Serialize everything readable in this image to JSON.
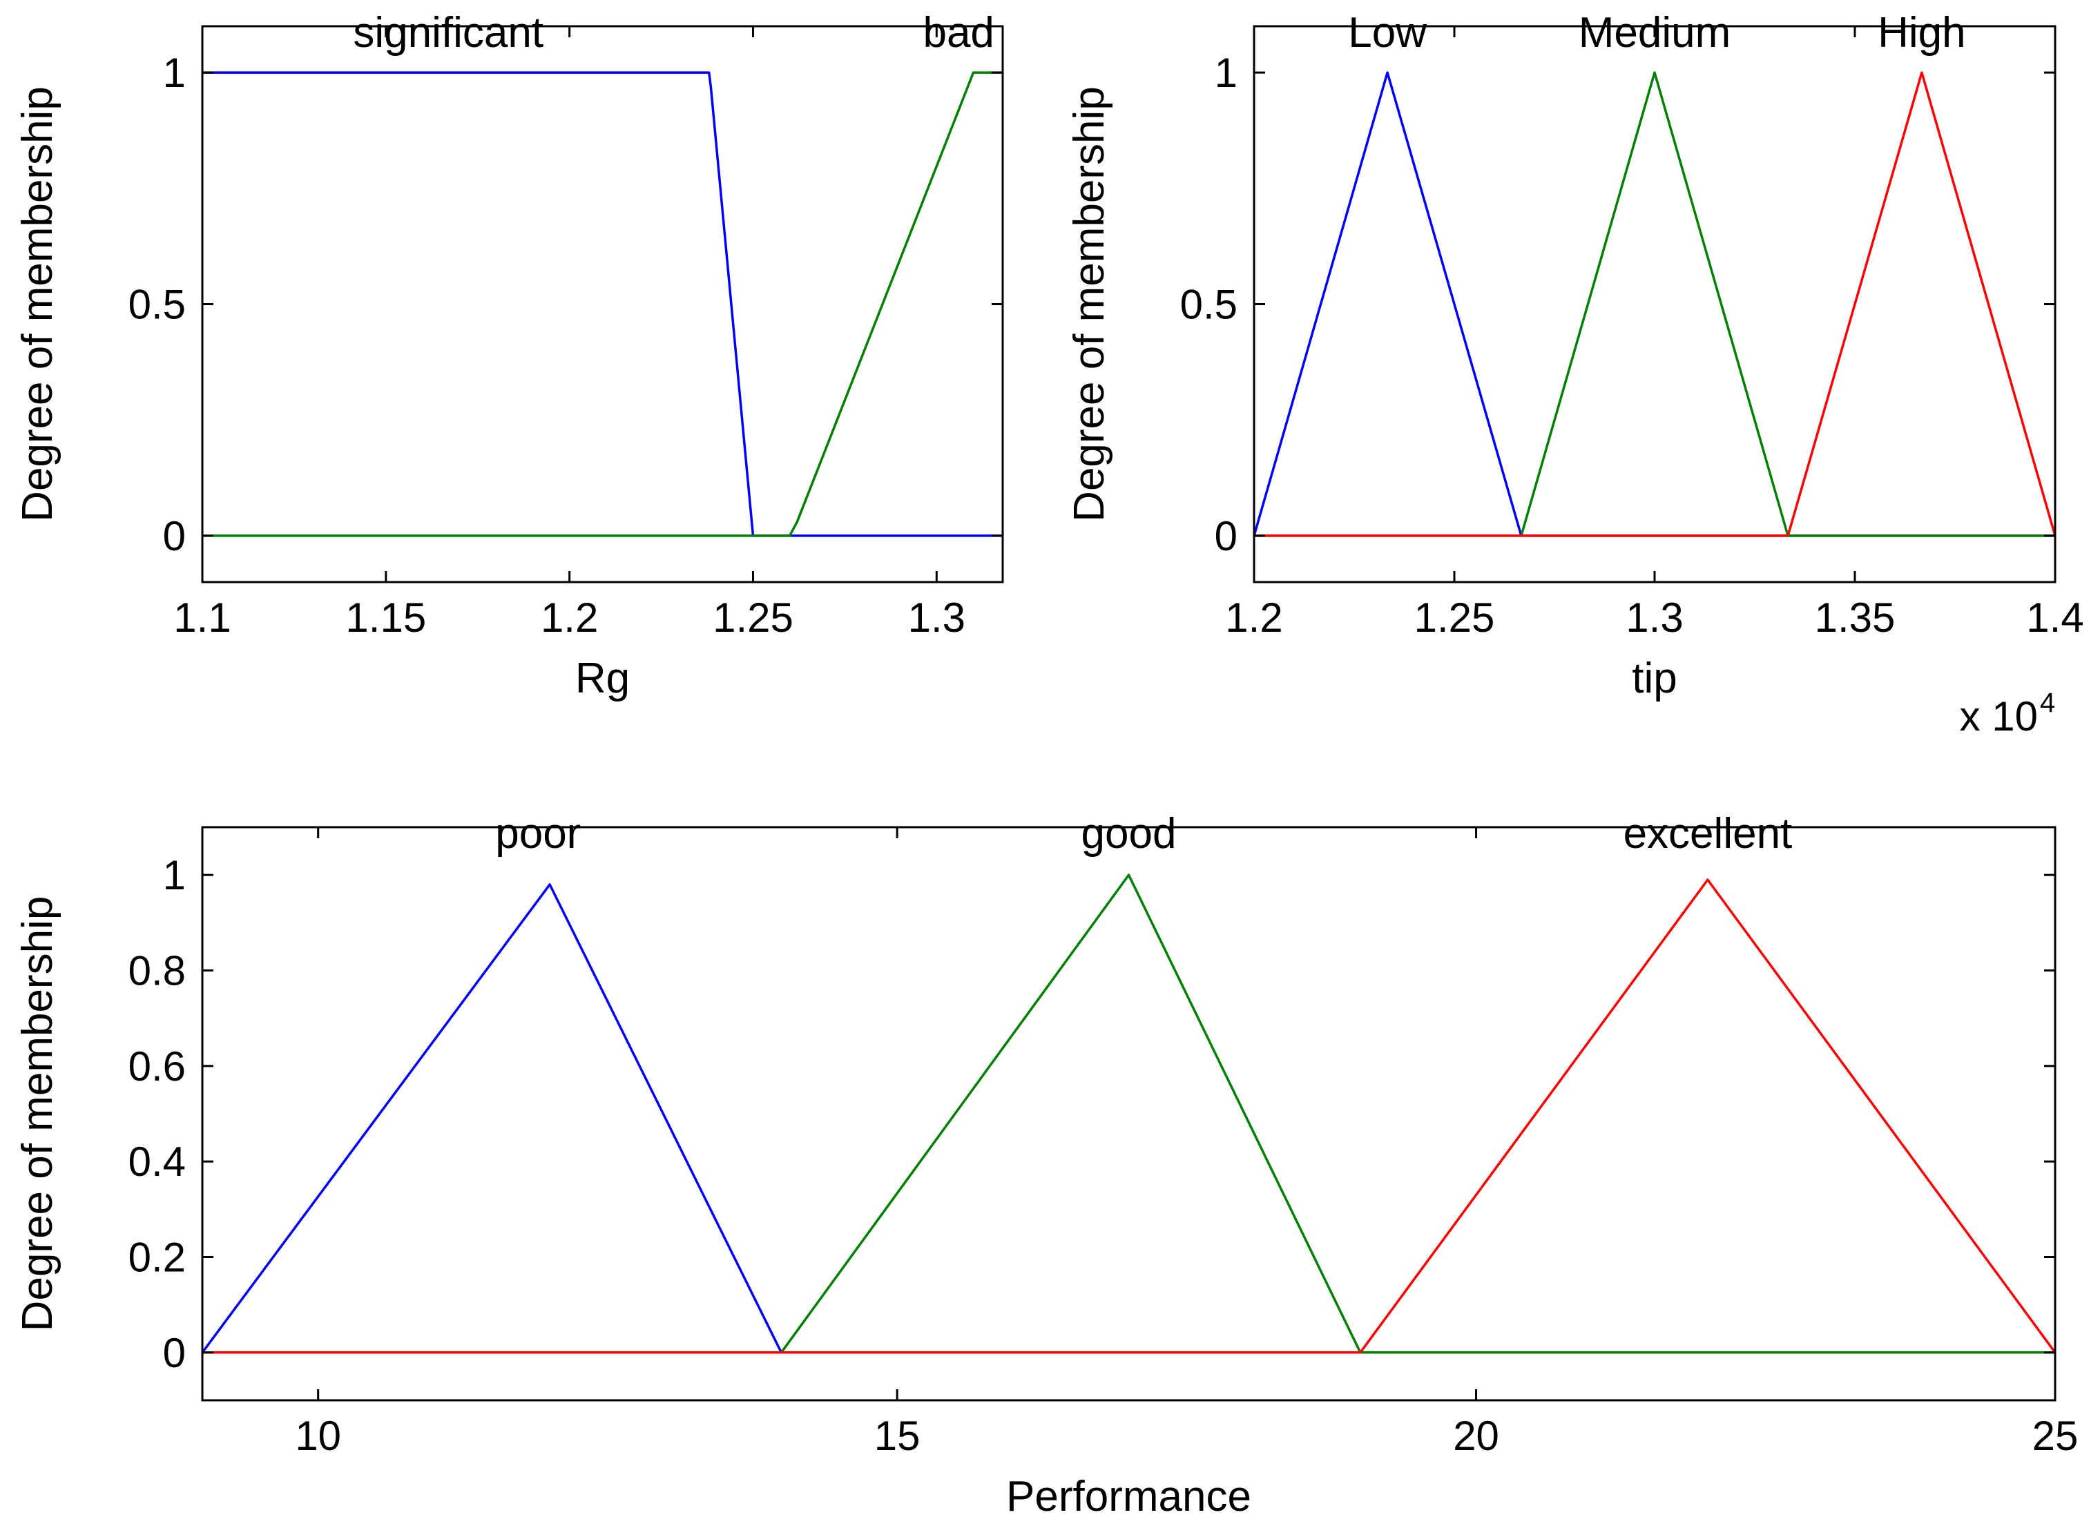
{
  "chart_data": [
    {
      "type": "line",
      "panel": "top-left",
      "title": "",
      "xlabel": "Rg",
      "ylabel": "Degree of membership",
      "xlim": [
        1.1,
        1.318
      ],
      "ylim": [
        -0.1,
        1.1
      ],
      "xticks": [
        1.1,
        1.15,
        1.2,
        1.25,
        1.3
      ],
      "xtick_labels": [
        "1.1",
        "1.15",
        "1.2",
        "1.25",
        "1.3"
      ],
      "yticks": [
        0,
        0.5,
        1
      ],
      "ytick_labels": [
        "0",
        "0.5",
        "1"
      ],
      "exponent_label": "",
      "series": [
        {
          "name": "significant",
          "label": "significant",
          "label_x": 1.167,
          "color": "#0000ff",
          "x": [
            1.1,
            1.238,
            1.2385,
            1.25,
            1.318
          ],
          "y": [
            1,
            1,
            0.97,
            0,
            0
          ]
        },
        {
          "name": "bad",
          "label": "bad",
          "label_x": 1.306,
          "color": "#007f00",
          "x": [
            1.1,
            1.26,
            1.262,
            1.31,
            1.318
          ],
          "y": [
            0,
            0,
            0.03,
            1,
            1
          ]
        }
      ]
    },
    {
      "type": "line",
      "panel": "top-right",
      "title": "",
      "xlabel": "tip",
      "ylabel": "Degree of membership",
      "xlim": [
        12000,
        14000
      ],
      "ylim": [
        -0.1,
        1.1
      ],
      "xticks": [
        12000,
        12500,
        13000,
        13500,
        14000
      ],
      "xtick_labels": [
        "1.2",
        "1.25",
        "1.3",
        "1.35",
        "1.4"
      ],
      "yticks": [
        0,
        0.5,
        1
      ],
      "ytick_labels": [
        "0",
        "0.5",
        "1"
      ],
      "exponent_label": "x 10",
      "exponent_power": "4",
      "series": [
        {
          "name": "Low",
          "label": "Low",
          "label_x": 12333,
          "color": "#0000ff",
          "x": [
            12000,
            12333,
            12667,
            14000
          ],
          "y": [
            0,
            1,
            0,
            0
          ]
        },
        {
          "name": "Medium",
          "label": "Medium",
          "label_x": 13000,
          "color": "#007f00",
          "x": [
            12000,
            12667,
            13000,
            13333,
            14000
          ],
          "y": [
            0,
            0,
            1,
            0,
            0
          ]
        },
        {
          "name": "High",
          "label": "High",
          "label_x": 13667,
          "color": "#ff0000",
          "x": [
            12000,
            13333,
            13667,
            14000
          ],
          "y": [
            0,
            0,
            1,
            0
          ]
        }
      ]
    },
    {
      "type": "line",
      "panel": "bottom",
      "title": "",
      "xlabel": "Performance",
      "ylabel": "Degree of membership",
      "xlim": [
        9,
        25
      ],
      "ylim": [
        -0.1,
        1.1
      ],
      "xticks": [
        10,
        15,
        20,
        25
      ],
      "xtick_labels": [
        "10",
        "15",
        "20",
        "25"
      ],
      "yticks": [
        0,
        0.2,
        0.4,
        0.6,
        0.8,
        1
      ],
      "ytick_labels": [
        "0",
        "0.2",
        "0.4",
        "0.6",
        "0.8",
        "1"
      ],
      "exponent_label": "",
      "series": [
        {
          "name": "poor",
          "label": "poor",
          "label_x": 11.9,
          "color": "#0000ff",
          "x": [
            9,
            12,
            14,
            25
          ],
          "y": [
            0,
            0.98,
            0,
            0
          ]
        },
        {
          "name": "good",
          "label": "good",
          "label_x": 17,
          "color": "#007f00",
          "x": [
            9,
            14,
            17,
            19,
            25
          ],
          "y": [
            0,
            0,
            1,
            0,
            0
          ]
        },
        {
          "name": "excellent",
          "label": "excellent",
          "label_x": 22,
          "color": "#ff0000",
          "x": [
            9,
            19,
            22,
            25
          ],
          "y": [
            0,
            0,
            0.99,
            0
          ]
        }
      ]
    }
  ]
}
